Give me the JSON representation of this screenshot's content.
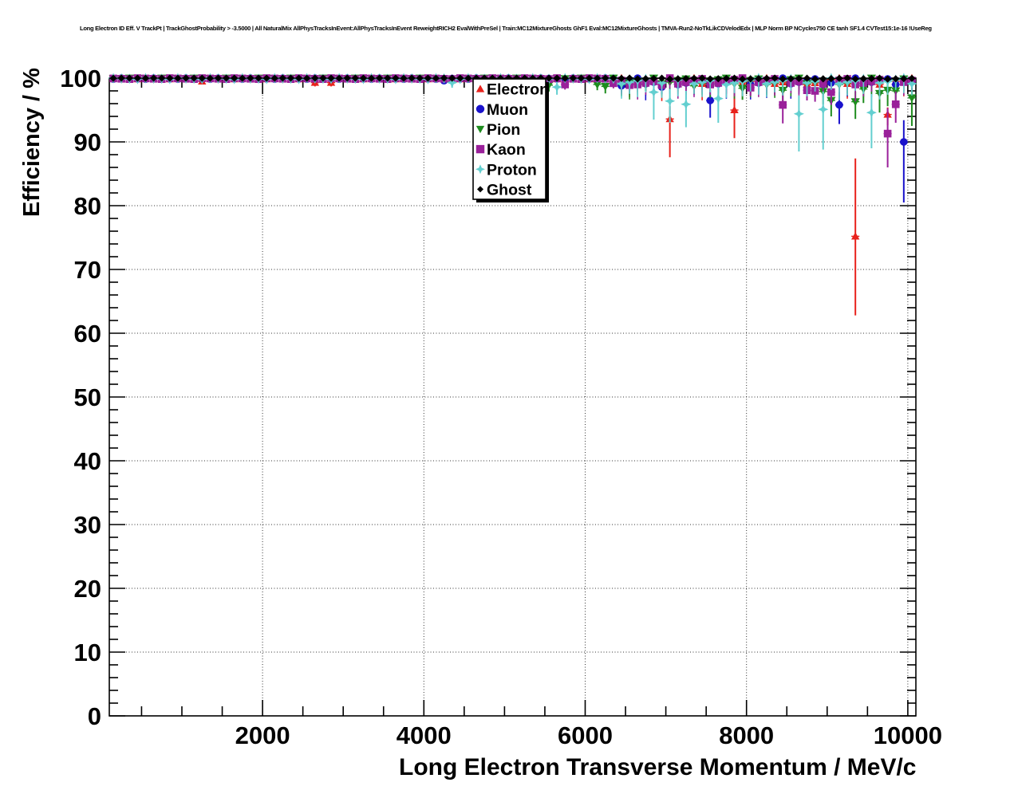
{
  "window": {
    "background_color": "#ffffff"
  },
  "title": "Long Electron ID Eff. V TrackPt | TrackGhostProbability > -3.5000 | All NaturalMix AllPhysTracksInEvent:AllPhysTracksInEvent ReweightRICH2 EvalWithPreSel | Train:MC12MixtureGhosts GhF1 Eval:MC12MixtureGhosts | TMVA-Run2-NoTkLikCDVelodEdx | MLP Norm BP NCycles750 CE tanh SF1.4 CVTest15:1e-16 !UseReg",
  "chart_data": {
    "type": "scatter",
    "title": "Long Electron ID Eff. V TrackPt | TrackGhostProbability > -3.5000 | All NaturalMix AllPhysTracksInEvent:AllPhysTracksInEvent ReweightRICH2 EvalWithPreSel | Train:MC12MixtureGhosts GhF1 Eval:MC12MixtureGhosts | TMVA-Run2-NoTkLikCDVelodEdx | MLP Norm BP NCycles750 CE tanh SF1.4 CVTest15:1e-16 !UseReg",
    "xlabel": "Long Electron Transverse Momentum / MeV/c",
    "ylabel": "Efficiency / %",
    "xlim": [
      100,
      10100
    ],
    "ylim": [
      0,
      100
    ],
    "x_ticks": {
      "major": [
        2000,
        4000,
        6000,
        8000,
        10000
      ],
      "major_labels": [
        "2000",
        "4000",
        "6000",
        "8000",
        "10000"
      ],
      "minor_step": 500
    },
    "y_ticks": {
      "major": [
        0,
        10,
        20,
        30,
        40,
        50,
        60,
        70,
        80,
        90,
        100
      ],
      "major_labels": [
        "0",
        "10",
        "20",
        "30",
        "40",
        "50",
        "60",
        "70",
        "80",
        "90",
        "100"
      ],
      "minor_step": 2
    },
    "grid": "dotted-at-major-ticks",
    "legend_position": "inside-top-center",
    "bin_width": 100,
    "bins": {
      "first_center": 150,
      "last_center": 10050,
      "step": 100
    },
    "baseline": {
      "y": 100,
      "err_lo_low_pt": 0.35,
      "err_lo_high_pt": 1.6,
      "high_pt_threshold": 6350,
      "scatter_below_100_high_pt": 1.0,
      "scatter_below_100_low_pt": 0.2
    },
    "series": [
      {
        "name": "Electron",
        "color": "#e8221c",
        "marker": "triangle-up",
        "points": [
          {
            "x": 1250,
            "y": 99.5,
            "lo": 99.0,
            "hi": 99.8
          },
          {
            "x": 2650,
            "y": 99.3,
            "lo": 98.7,
            "hi": 99.7
          },
          {
            "x": 2850,
            "y": 99.3,
            "lo": 98.7,
            "hi": 99.7
          },
          {
            "x": 7050,
            "y": 93.6,
            "lo": 87.6,
            "hi": 95.6
          },
          {
            "x": 7850,
            "y": 95.0,
            "lo": 90.6,
            "hi": 98.6
          },
          {
            "x": 9350,
            "y": 75.2,
            "lo": 62.8,
            "hi": 87.4
          },
          {
            "x": 9750,
            "y": 94.3,
            "lo": 92.6,
            "hi": 95.4
          }
        ]
      },
      {
        "name": "Muon",
        "color": "#1a12cc",
        "marker": "circle",
        "points": [
          {
            "x": 4250,
            "y": 99.6,
            "lo": 99.2,
            "hi": 99.9
          },
          {
            "x": 6450,
            "y": 98.8,
            "lo": 97.8,
            "hi": 99.4
          },
          {
            "x": 6950,
            "y": 98.6,
            "lo": 97.5,
            "hi": 99.3
          },
          {
            "x": 7550,
            "y": 96.5,
            "lo": 93.8,
            "hi": 98.2
          },
          {
            "x": 9150,
            "y": 95.8,
            "lo": 92.8,
            "hi": 97.8
          },
          {
            "x": 9950,
            "y": 90.0,
            "lo": 80.5,
            "hi": 93.4
          }
        ]
      },
      {
        "name": "Pion",
        "color": "#1e8c1e",
        "marker": "triangle-down",
        "points": [
          {
            "x": 4350,
            "y": 99.4,
            "lo": 98.8,
            "hi": 99.8
          },
          {
            "x": 5550,
            "y": 98.9,
            "lo": 97.9,
            "hi": 99.5
          },
          {
            "x": 6150,
            "y": 99.0,
            "lo": 98.1,
            "hi": 99.6
          },
          {
            "x": 6250,
            "y": 98.7,
            "lo": 97.6,
            "hi": 99.4
          },
          {
            "x": 6750,
            "y": 99.0,
            "lo": 98.0,
            "hi": 99.6
          },
          {
            "x": 7350,
            "y": 98.8,
            "lo": 97.5,
            "hi": 99.5
          },
          {
            "x": 7950,
            "y": 98.4,
            "lo": 96.6,
            "hi": 99.3
          },
          {
            "x": 8450,
            "y": 98.1,
            "lo": 96.2,
            "hi": 99.2
          },
          {
            "x": 8950,
            "y": 97.9,
            "lo": 95.9,
            "hi": 99.0
          },
          {
            "x": 9050,
            "y": 96.5,
            "lo": 94.0,
            "hi": 98.1
          },
          {
            "x": 9350,
            "y": 96.3,
            "lo": 93.6,
            "hi": 97.9
          },
          {
            "x": 9450,
            "y": 98.3,
            "lo": 96.1,
            "hi": 99.4
          },
          {
            "x": 9650,
            "y": 97.6,
            "lo": 94.6,
            "hi": 99.0
          },
          {
            "x": 9750,
            "y": 98.1,
            "lo": 95.6,
            "hi": 99.3
          },
          {
            "x": 9850,
            "y": 98.0,
            "lo": 95.4,
            "hi": 99.2
          },
          {
            "x": 10050,
            "y": 96.9,
            "lo": 92.5,
            "hi": 98.7
          }
        ]
      },
      {
        "name": "Kaon",
        "color": "#9a209a",
        "marker": "square",
        "points": [
          {
            "x": 5750,
            "y": 99.0,
            "lo": 98.2,
            "hi": 99.6
          },
          {
            "x": 6350,
            "y": 99.2,
            "lo": 98.4,
            "hi": 99.7
          },
          {
            "x": 6550,
            "y": 98.9,
            "lo": 98.0,
            "hi": 99.5
          },
          {
            "x": 6950,
            "y": 98.9,
            "lo": 97.9,
            "hi": 99.5
          },
          {
            "x": 8050,
            "y": 98.5,
            "lo": 97.2,
            "hi": 99.3
          },
          {
            "x": 8450,
            "y": 95.8,
            "lo": 92.9,
            "hi": 97.8
          },
          {
            "x": 8750,
            "y": 98.1,
            "lo": 96.5,
            "hi": 99.2
          },
          {
            "x": 8850,
            "y": 98.0,
            "lo": 96.3,
            "hi": 99.1
          },
          {
            "x": 9050,
            "y": 97.8,
            "lo": 95.8,
            "hi": 98.9
          },
          {
            "x": 9750,
            "y": 91.3,
            "lo": 86.0,
            "hi": 95.3
          },
          {
            "x": 9850,
            "y": 95.9,
            "lo": 93.0,
            "hi": 97.9
          }
        ]
      },
      {
        "name": "Proton",
        "color": "#63cfd0",
        "marker": "star4",
        "points": [
          {
            "x": 4350,
            "y": 99.3,
            "lo": 98.5,
            "hi": 99.8
          },
          {
            "x": 5650,
            "y": 98.6,
            "lo": 97.4,
            "hi": 99.4
          },
          {
            "x": 6850,
            "y": 97.8,
            "lo": 93.5,
            "hi": 99.3
          },
          {
            "x": 7050,
            "y": 96.4,
            "lo": 93.0,
            "hi": 98.3
          },
          {
            "x": 7250,
            "y": 95.9,
            "lo": 92.3,
            "hi": 98.0
          },
          {
            "x": 7650,
            "y": 96.8,
            "lo": 93.0,
            "hi": 98.6
          },
          {
            "x": 8650,
            "y": 94.4,
            "lo": 88.5,
            "hi": 97.3
          },
          {
            "x": 8950,
            "y": 95.1,
            "lo": 88.8,
            "hi": 97.9
          },
          {
            "x": 9550,
            "y": 94.6,
            "lo": 89.0,
            "hi": 97.5
          }
        ]
      },
      {
        "name": "Ghost",
        "color": "#000000",
        "marker": "diamond",
        "points": []
      }
    ]
  },
  "legend": {
    "entries": [
      {
        "label": "Electron",
        "marker": "triangle-up",
        "color": "#e8221c"
      },
      {
        "label": "Muon",
        "marker": "circle",
        "color": "#1a12cc"
      },
      {
        "label": "Pion",
        "marker": "triangle-down",
        "color": "#1e8c1e"
      },
      {
        "label": "Kaon",
        "marker": "square",
        "color": "#9a209a"
      },
      {
        "label": "Proton",
        "marker": "star4",
        "color": "#63cfd0"
      },
      {
        "label": "Ghost",
        "marker": "diamond",
        "color": "#000000"
      }
    ]
  }
}
